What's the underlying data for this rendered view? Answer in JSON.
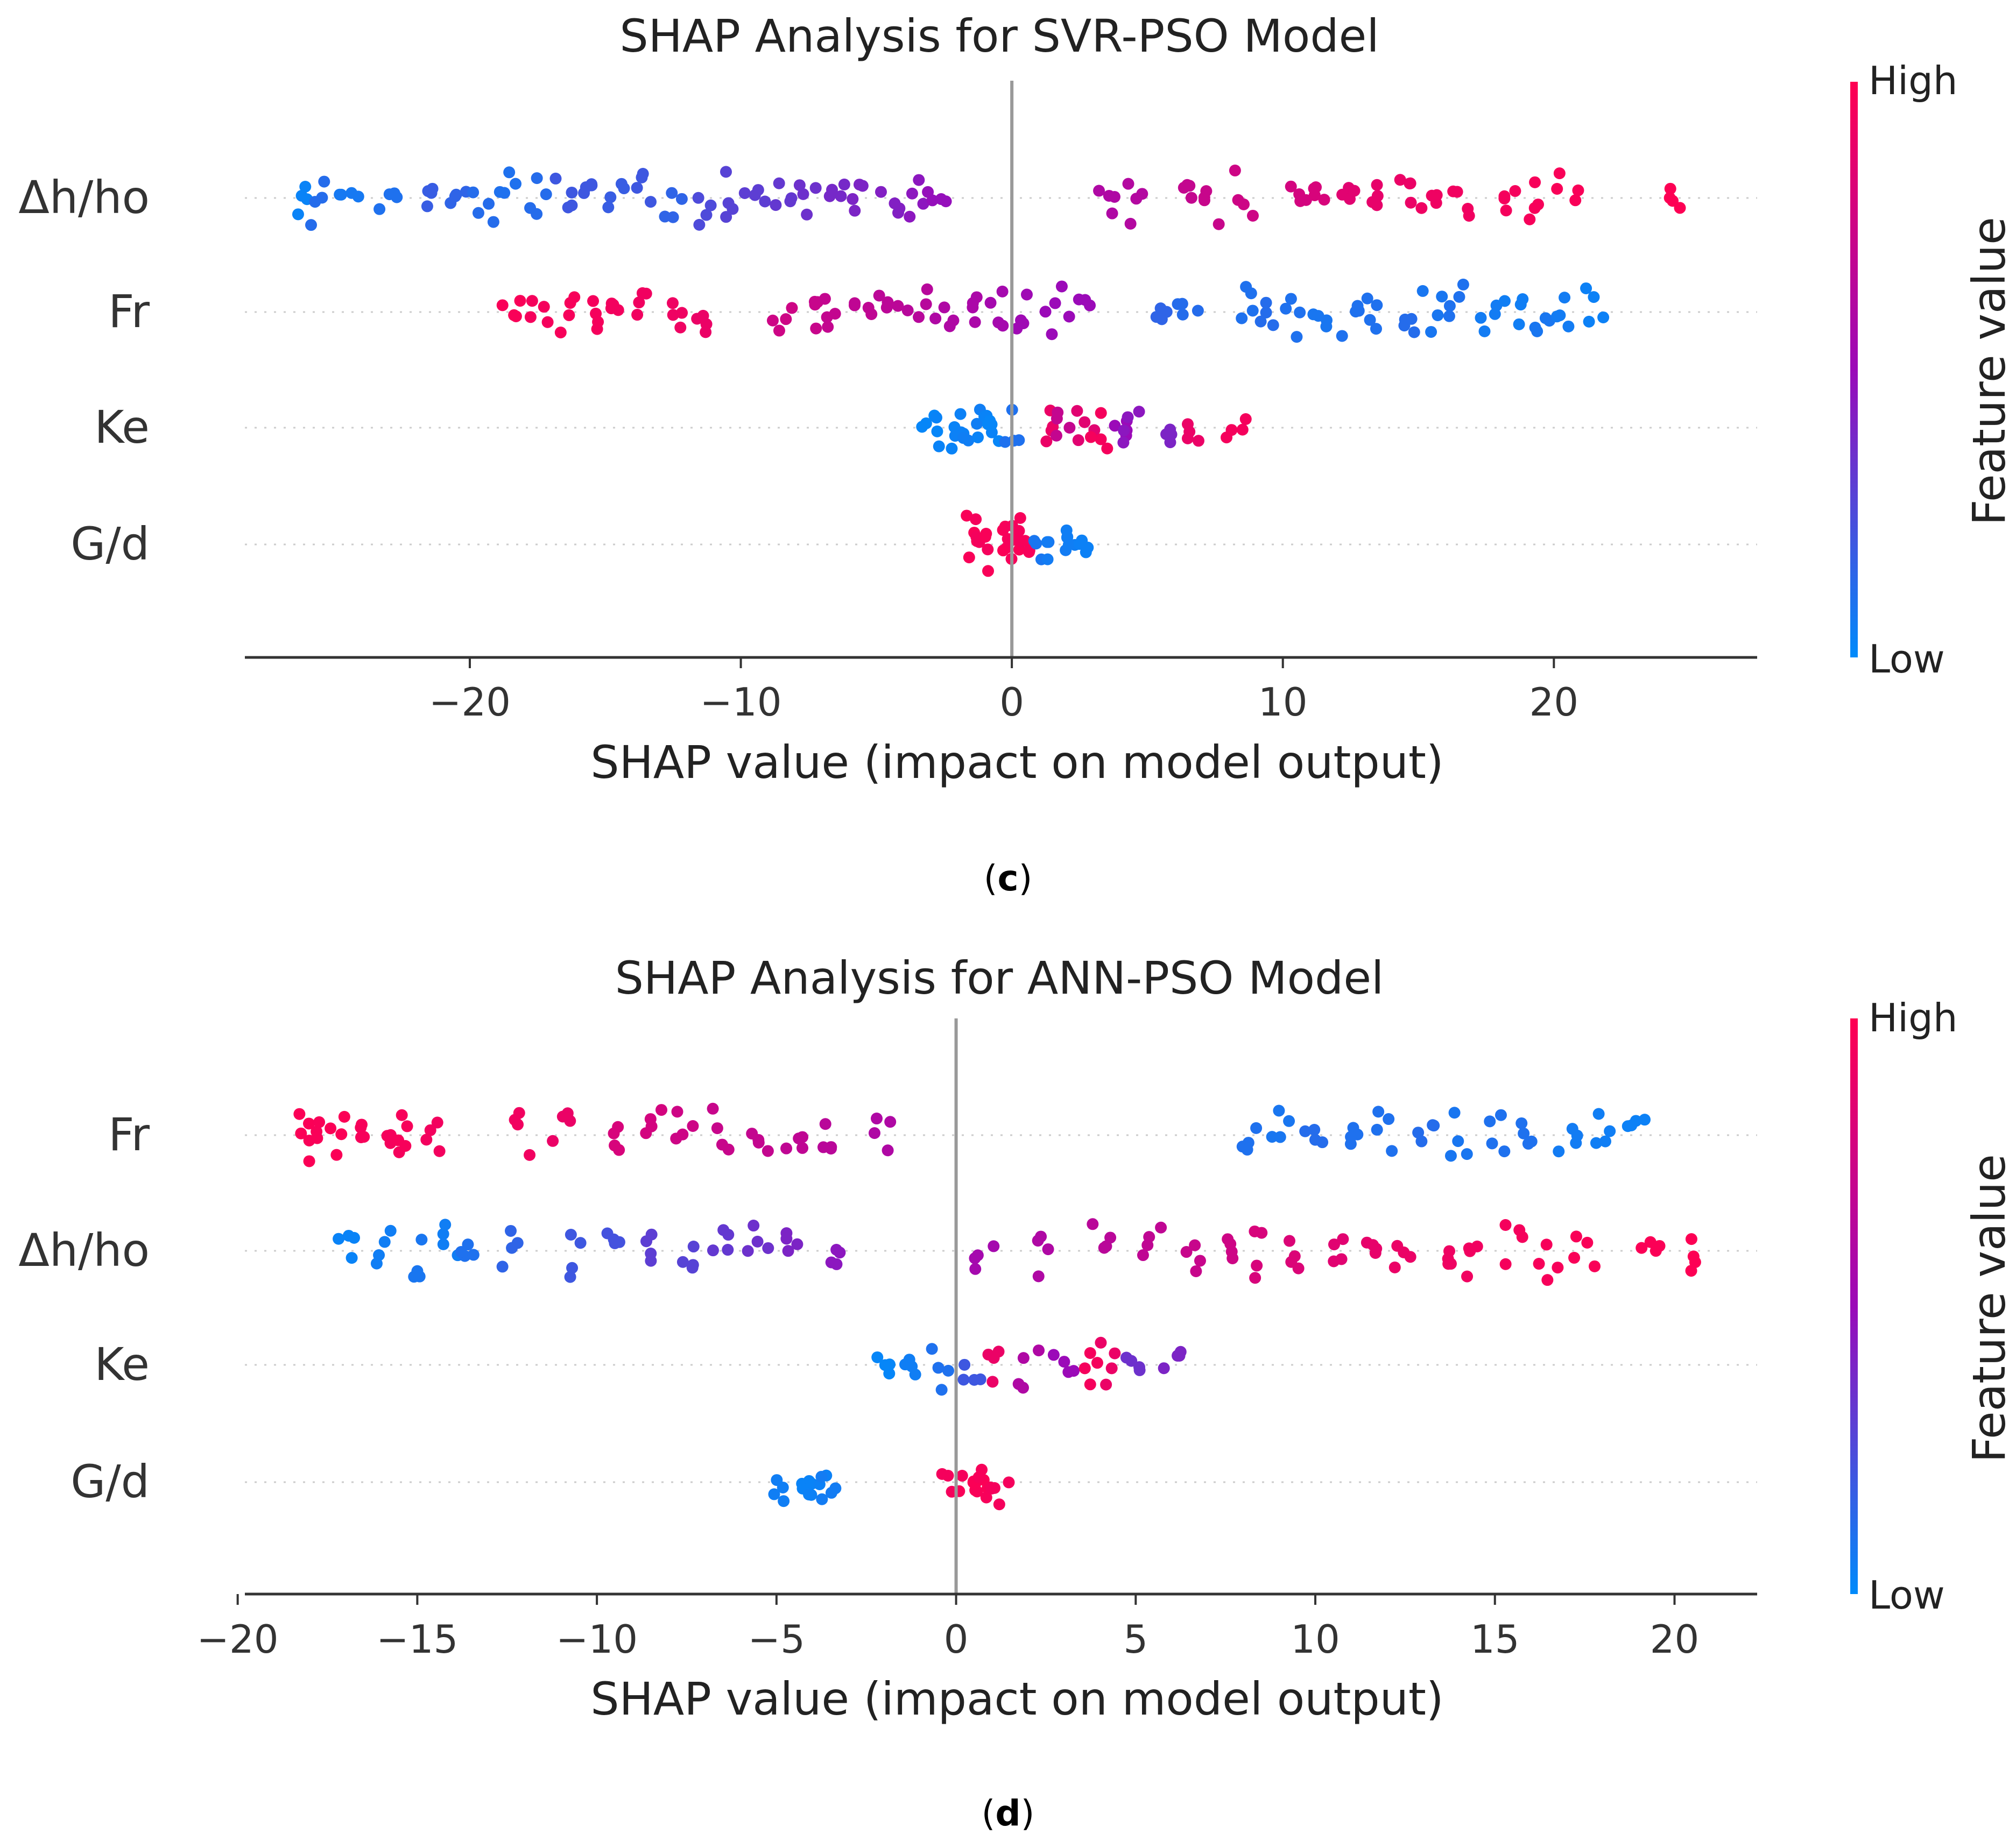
{
  "colors": {
    "low": "#008bfb",
    "high": "#ff0052",
    "mid": "#9b0ab8",
    "axis": "#333333",
    "zero_line": "#999999",
    "grid": "#cccccc"
  },
  "chart_data": [
    {
      "type": "scatter",
      "subtype": "shap-beeswarm",
      "title": "SHAP Analysis for SVR-PSO Model",
      "xlabel": "SHAP value (impact on model output)",
      "ylabel": "",
      "xlim": [
        -28.3,
        27.5
      ],
      "xticks": [
        -20,
        -10,
        0,
        10,
        20
      ],
      "xtick_labels": [
        "−20",
        "−10",
        "0",
        "10",
        "20"
      ],
      "features": [
        "Δh/ho",
        "Fr",
        "Ke",
        "G/d"
      ],
      "colorbar": {
        "label": "Feature value",
        "high": "High",
        "low": "Low"
      },
      "caption": "c",
      "series": [
        {
          "name": "Δh/ho",
          "min": -26,
          "max": 24.6,
          "points": [
            [
              -26,
              0.03
            ],
            [
              -25.5,
              0.12
            ],
            [
              -24.5,
              0.07
            ],
            [
              -23,
              0.1
            ],
            [
              -21.5,
              0.18
            ],
            [
              -20.5,
              0.15
            ],
            [
              -19.5,
              0.12
            ],
            [
              -18.5,
              0.1
            ],
            [
              -17.5,
              0.12
            ],
            [
              -16.5,
              0.2
            ],
            [
              -15.5,
              0.2
            ],
            [
              -14.5,
              0.18
            ],
            [
              -13.5,
              0.2
            ],
            [
              -12.5,
              0.15
            ],
            [
              -11.5,
              0.25
            ],
            [
              -10.5,
              0.28
            ],
            [
              -9.5,
              0.3
            ],
            [
              -8.5,
              0.32
            ],
            [
              -7.5,
              0.35
            ],
            [
              -6.5,
              0.38
            ],
            [
              -5.5,
              0.4
            ],
            [
              -4.5,
              0.42
            ],
            [
              -3.5,
              0.45
            ],
            [
              -2.8,
              0.48
            ],
            [
              3.5,
              0.6
            ],
            [
              4.5,
              0.62
            ],
            [
              6.5,
              0.7
            ],
            [
              7.5,
              0.72
            ],
            [
              8.5,
              0.75
            ],
            [
              10.5,
              0.78
            ],
            [
              11.5,
              0.8
            ],
            [
              12.5,
              0.85
            ],
            [
              13.5,
              0.88
            ],
            [
              14.5,
              0.9
            ],
            [
              15.5,
              0.92
            ],
            [
              16.5,
              0.93
            ],
            [
              18.5,
              0.95
            ],
            [
              19.5,
              0.96
            ],
            [
              20.5,
              0.97
            ],
            [
              24.6,
              0.99
            ]
          ]
        },
        {
          "name": "Fr",
          "min": -18.5,
          "max": 21.5,
          "points": [
            [
              -18.5,
              0.97
            ],
            [
              -17.5,
              0.95
            ],
            [
              -16.5,
              0.96
            ],
            [
              -15.5,
              0.95
            ],
            [
              -14.5,
              0.94
            ],
            [
              -13.5,
              0.93
            ],
            [
              -12.5,
              0.92
            ],
            [
              -11.5,
              0.9
            ],
            [
              -8.5,
              0.75
            ],
            [
              -7.5,
              0.72
            ],
            [
              -6.5,
              0.7
            ],
            [
              -5.5,
              0.68
            ],
            [
              -4.5,
              0.66
            ],
            [
              -3.5,
              0.64
            ],
            [
              -2.5,
              0.6
            ],
            [
              -1.5,
              0.58
            ],
            [
              -0.5,
              0.55
            ],
            [
              0.5,
              0.52
            ],
            [
              1.5,
              0.5
            ],
            [
              2.5,
              0.5
            ],
            [
              5.5,
              0.15
            ],
            [
              6.5,
              0.12
            ],
            [
              8.5,
              0.1
            ],
            [
              9.5,
              0.12
            ],
            [
              10.5,
              0.1
            ],
            [
              11.5,
              0.08
            ],
            [
              12.5,
              0.1
            ],
            [
              13.5,
              0.1
            ],
            [
              14.5,
              0.12
            ],
            [
              15.5,
              0.08
            ],
            [
              16.5,
              0.1
            ],
            [
              17.5,
              0.06
            ],
            [
              18.5,
              0.05
            ],
            [
              19.5,
              0.08
            ],
            [
              20.5,
              0.06
            ],
            [
              21.5,
              0.04
            ]
          ]
        },
        {
          "name": "Ke",
          "min": -3.1,
          "max": 8.4,
          "points": [
            [
              -3,
              0.02
            ],
            [
              -2.5,
              0.03
            ],
            [
              -2,
              0.04
            ],
            [
              -1.5,
              0.05
            ],
            [
              -1,
              0.03
            ],
            [
              -0.5,
              0.02
            ],
            [
              0,
              0.1
            ],
            [
              1.3,
              0.9
            ],
            [
              2,
              0.7
            ],
            [
              2.7,
              0.85
            ],
            [
              3.3,
              0.95
            ],
            [
              4,
              0.5
            ],
            [
              4.5,
              0.45
            ],
            [
              5.5,
              0.4
            ],
            [
              6.8,
              0.9
            ],
            [
              8.3,
              0.95
            ]
          ]
        },
        {
          "name": "G/d",
          "min": -1.4,
          "max": 2.9,
          "points": [
            [
              -1.3,
              0.97
            ],
            [
              -1,
              0.95
            ],
            [
              -0.7,
              0.97
            ],
            [
              -0.4,
              0.96
            ],
            [
              -0.1,
              0.98
            ],
            [
              0.2,
              0.95
            ],
            [
              0.5,
              0.96
            ],
            [
              1.2,
              0.08
            ],
            [
              1.7,
              0.06
            ],
            [
              2.2,
              0.05
            ],
            [
              2.8,
              0.04
            ]
          ]
        }
      ]
    },
    {
      "type": "scatter",
      "subtype": "shap-beeswarm",
      "title": "SHAP Analysis for ANN-PSO Model",
      "xlabel": "SHAP value (impact on model output)",
      "ylabel": "",
      "xlim": [
        -19.8,
        22.3
      ],
      "xticks": [
        -20,
        -15,
        -10,
        -5,
        0,
        5,
        10,
        15,
        20
      ],
      "xtick_labels": [
        "−20",
        "−15",
        "−10",
        "−5",
        "0",
        "5",
        "10",
        "15",
        "20"
      ],
      "features": [
        "Fr",
        "Δh/ho",
        "Ke",
        "G/d"
      ],
      "colorbar": {
        "label": "Feature value",
        "high": "High",
        "low": "Low"
      },
      "caption": "d",
      "series": [
        {
          "name": "Fr",
          "min": -18.2,
          "max": 19.2,
          "points": [
            [
              -18.2,
              0.98
            ],
            [
              -17.8,
              0.97
            ],
            [
              -17.2,
              0.98
            ],
            [
              -16.5,
              0.96
            ],
            [
              -15.8,
              0.95
            ],
            [
              -15.3,
              0.96
            ],
            [
              -14.5,
              0.94
            ],
            [
              -12,
              0.93
            ],
            [
              -11,
              0.9
            ],
            [
              -9.5,
              0.8
            ],
            [
              -8.5,
              0.78
            ],
            [
              -7.5,
              0.75
            ],
            [
              -6.5,
              0.72
            ],
            [
              -5.5,
              0.7
            ],
            [
              -4.5,
              0.68
            ],
            [
              -3.5,
              0.65
            ],
            [
              -2,
              0.6
            ],
            [
              8.2,
              0.1
            ],
            [
              9,
              0.08
            ],
            [
              10,
              0.12
            ],
            [
              11,
              0.1
            ],
            [
              12,
              0.1
            ],
            [
              13,
              0.12
            ],
            [
              14,
              0.08
            ],
            [
              15,
              0.1
            ],
            [
              16,
              0.1
            ],
            [
              17,
              0.06
            ],
            [
              18,
              0.05
            ],
            [
              19,
              0.04
            ]
          ]
        },
        {
          "name": "Δh/ho",
          "min": -17,
          "max": 20.5,
          "points": [
            [
              -17,
              0.03
            ],
            [
              -16,
              0.05
            ],
            [
              -15,
              0.08
            ],
            [
              -14,
              0.05
            ],
            [
              -13.5,
              0.1
            ],
            [
              -12.5,
              0.15
            ],
            [
              -10.5,
              0.2
            ],
            [
              -9.5,
              0.22
            ],
            [
              -8.5,
              0.3
            ],
            [
              -7.5,
              0.28
            ],
            [
              -6.5,
              0.32
            ],
            [
              -5.5,
              0.35
            ],
            [
              -4.5,
              0.4
            ],
            [
              -3.2,
              0.45
            ],
            [
              0.8,
              0.55
            ],
            [
              2.5,
              0.6
            ],
            [
              4,
              0.65
            ],
            [
              5.5,
              0.68
            ],
            [
              6.5,
              0.72
            ],
            [
              7.5,
              0.75
            ],
            [
              8.5,
              0.8
            ],
            [
              9.5,
              0.82
            ],
            [
              10.5,
              0.85
            ],
            [
              11.5,
              0.88
            ],
            [
              12.5,
              0.9
            ],
            [
              13.5,
              0.92
            ],
            [
              14.5,
              0.93
            ],
            [
              15.5,
              0.95
            ],
            [
              16.5,
              0.96
            ],
            [
              17.5,
              0.97
            ],
            [
              19.3,
              0.98
            ],
            [
              20.4,
              0.99
            ]
          ]
        },
        {
          "name": "Ke",
          "min": -2,
          "max": 6,
          "points": [
            [
              -2,
              0.02
            ],
            [
              -1.2,
              0.05
            ],
            [
              -0.5,
              0.1
            ],
            [
              0.5,
              0.2
            ],
            [
              1,
              0.9
            ],
            [
              2,
              0.6
            ],
            [
              3,
              0.5
            ],
            [
              3.8,
              0.95
            ],
            [
              4.3,
              0.9
            ],
            [
              5,
              0.35
            ],
            [
              6,
              0.4
            ]
          ]
        },
        {
          "name": "G/d",
          "min": -4.8,
          "max": 1.3,
          "points": [
            [
              -4.8,
              0.05
            ],
            [
              -4.3,
              0.03
            ],
            [
              -3.8,
              0.04
            ],
            [
              -3.5,
              0.06
            ],
            [
              -0.1,
              0.95
            ],
            [
              0.3,
              0.97
            ],
            [
              0.6,
              0.98
            ],
            [
              0.9,
              0.96
            ],
            [
              1.2,
              0.95
            ]
          ]
        }
      ]
    }
  ]
}
